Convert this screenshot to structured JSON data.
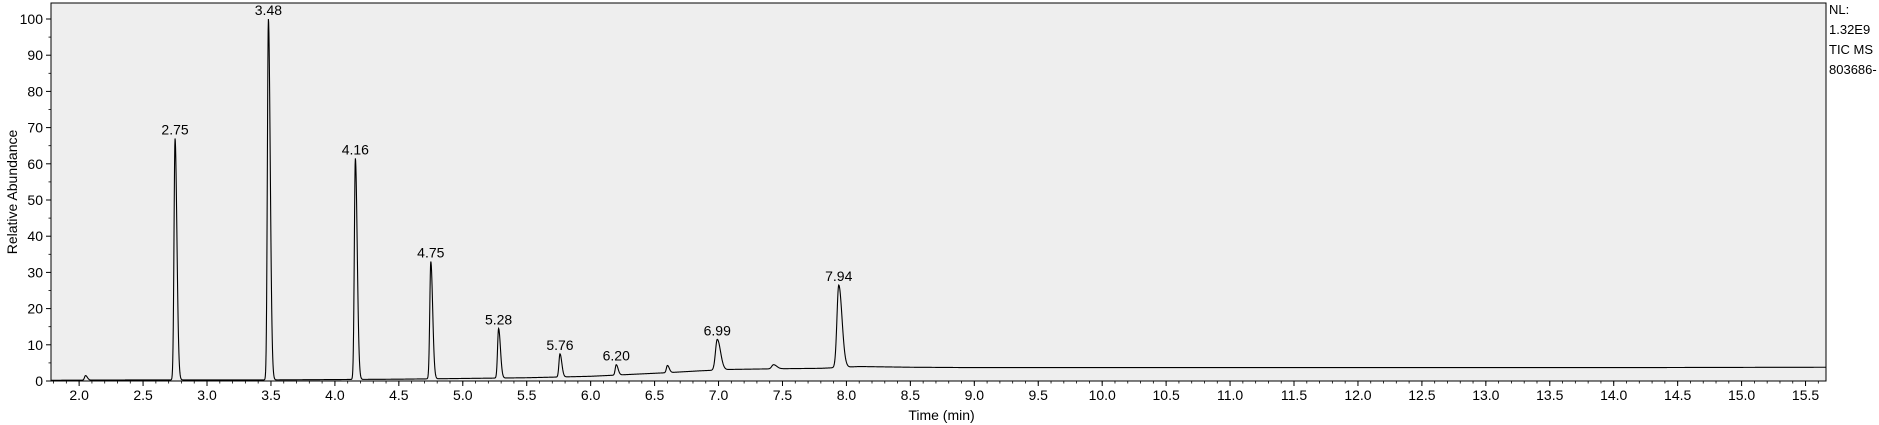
{
  "chart_data": {
    "type": "line",
    "xlabel": "Time (min)",
    "ylabel": "Relative Abundance",
    "xlim": [
      1.78,
      15.66
    ],
    "ylim": [
      0,
      100
    ],
    "x_ticks": [
      "2.0",
      "2.5",
      "3.0",
      "3.5",
      "4.0",
      "4.5",
      "5.0",
      "5.5",
      "6.0",
      "6.5",
      "7.0",
      "7.5",
      "8.0",
      "8.5",
      "9.0",
      "9.5",
      "10.0",
      "10.5",
      "11.0",
      "11.5",
      "12.0",
      "12.5",
      "13.0",
      "13.5",
      "14.0",
      "14.5",
      "15.0",
      "15.5"
    ],
    "y_ticks": [
      "0",
      "10",
      "20",
      "30",
      "40",
      "50",
      "60",
      "70",
      "80",
      "90",
      "100"
    ],
    "grid": false,
    "background": "#eeeeee",
    "line_color": "#000000",
    "info": [
      "NL:",
      "1.32E9",
      "TIC  MS",
      "803686-"
    ],
    "peaks": [
      {
        "x": 2.75,
        "y": 67,
        "label": "2.75"
      },
      {
        "x": 3.48,
        "y": 100,
        "label": "3.48"
      },
      {
        "x": 4.16,
        "y": 61.5,
        "label": "4.16"
      },
      {
        "x": 4.75,
        "y": 33,
        "label": "4.75"
      },
      {
        "x": 5.28,
        "y": 14.5,
        "label": "5.28"
      },
      {
        "x": 5.76,
        "y": 7.5,
        "label": "5.76"
      },
      {
        "x": 6.2,
        "y": 4.5,
        "label": "6.20"
      },
      {
        "x": 6.99,
        "y": 11.5,
        "label": "6.99"
      },
      {
        "x": 7.94,
        "y": 26.5,
        "label": "7.94"
      }
    ],
    "minor_peaks": [
      {
        "x": 2.05,
        "y": 1.5
      },
      {
        "x": 6.6,
        "y": 4.3
      },
      {
        "x": 7.43,
        "y": 4.5
      }
    ],
    "baseline": [
      [
        1.78,
        0.2
      ],
      [
        2.5,
        0.3
      ],
      [
        3.0,
        0.3
      ],
      [
        3.5,
        0.3
      ],
      [
        4.0,
        0.4
      ],
      [
        4.5,
        0.5
      ],
      [
        5.0,
        0.7
      ],
      [
        5.5,
        0.9
      ],
      [
        6.0,
        1.3
      ],
      [
        6.3,
        1.8
      ],
      [
        6.6,
        2.3
      ],
      [
        6.85,
        2.8
      ],
      [
        7.1,
        3.2
      ],
      [
        7.5,
        3.4
      ],
      [
        7.8,
        3.5
      ],
      [
        8.1,
        4.0
      ],
      [
        8.5,
        3.8
      ],
      [
        9.0,
        3.7
      ],
      [
        10.0,
        3.7
      ],
      [
        12.0,
        3.7
      ],
      [
        14.0,
        3.7
      ],
      [
        15.66,
        3.8
      ]
    ]
  }
}
